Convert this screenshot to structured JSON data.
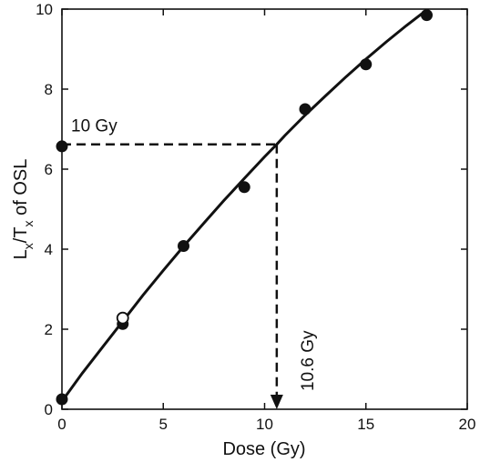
{
  "chart_data": {
    "type": "scatter",
    "xlabel": "Dose (Gy)",
    "ylabel": {
      "main": "L",
      "sub1": "x",
      "mid": "/T",
      "sub2": "x",
      "tail": " of OSL"
    },
    "xlim": [
      0,
      20
    ],
    "ylim": [
      0,
      10
    ],
    "xticks": [
      0,
      5,
      10,
      15,
      20
    ],
    "yticks": [
      0,
      2,
      4,
      6,
      8,
      10
    ],
    "grid": false,
    "series": [
      {
        "marker": "filled-circle",
        "x": [
          0,
          3,
          6,
          9,
          12,
          15,
          18
        ],
        "y": [
          0.25,
          2.13,
          4.08,
          5.55,
          7.5,
          8.62,
          9.85
        ]
      },
      {
        "marker": "open-circle",
        "x": [
          3
        ],
        "y": [
          2.28
        ]
      },
      {
        "marker": "filled-circle",
        "x": [
          0
        ],
        "y": [
          6.57
        ]
      }
    ],
    "fit_curve": {
      "x": [
        0,
        1,
        2,
        3,
        4,
        5,
        6,
        7,
        8,
        9,
        10,
        10.6,
        11,
        12,
        13,
        14,
        15,
        16,
        17,
        18
      ],
      "y": [
        0.2,
        0.9,
        1.55,
        2.2,
        2.85,
        3.47,
        4.07,
        4.65,
        5.22,
        5.77,
        6.31,
        6.62,
        6.84,
        7.35,
        7.83,
        8.3,
        8.75,
        9.18,
        9.59,
        9.98
      ]
    },
    "annotations": {
      "natural_signal_label": "10 Gy",
      "natural_signal_y": 6.62,
      "equivalent_dose_label": "10.6 Gy",
      "equivalent_dose_x": 10.6
    }
  }
}
